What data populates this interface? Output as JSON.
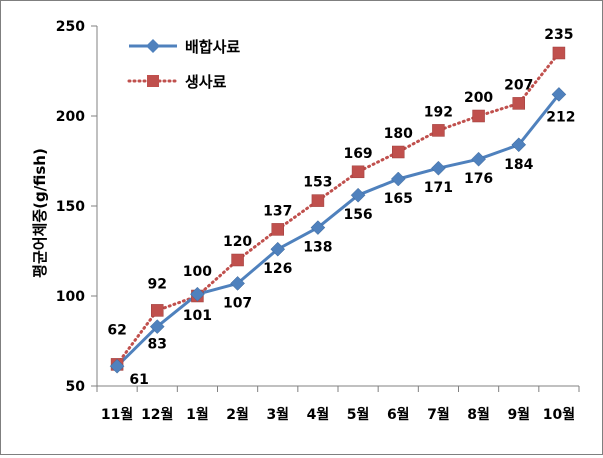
{
  "chart_data": {
    "type": "line",
    "ylabel": "평균어체중(g/fish)",
    "ylim": [
      50,
      250
    ],
    "yticks": [
      50,
      100,
      150,
      200,
      250
    ],
    "categories": [
      "11월",
      "12월",
      "1월",
      "2월",
      "3월",
      "4월",
      "5월",
      "6월",
      "7월",
      "8월",
      "9월",
      "10월"
    ],
    "grid": false,
    "legend": "top-left",
    "series": [
      {
        "name": "배합사료",
        "color": "#4f81bd",
        "marker": "diamond",
        "line": "solid",
        "values": [
          61,
          83,
          101,
          107,
          126,
          138,
          156,
          165,
          171,
          176,
          184,
          212
        ],
        "label_pos": [
          "below",
          "below",
          "below",
          "below",
          "below",
          "below",
          "below",
          "below",
          "below",
          "below",
          "below",
          "below"
        ]
      },
      {
        "name": "생사료",
        "color": "#c0504d",
        "marker": "square",
        "line": "dotted",
        "values": [
          62,
          92,
          100,
          120,
          137,
          153,
          169,
          180,
          192,
          200,
          207,
          235
        ],
        "label_pos": [
          "above",
          "above",
          "above",
          "above",
          "above",
          "above",
          "above",
          "above",
          "above",
          "above",
          "above",
          "above"
        ]
      }
    ]
  }
}
